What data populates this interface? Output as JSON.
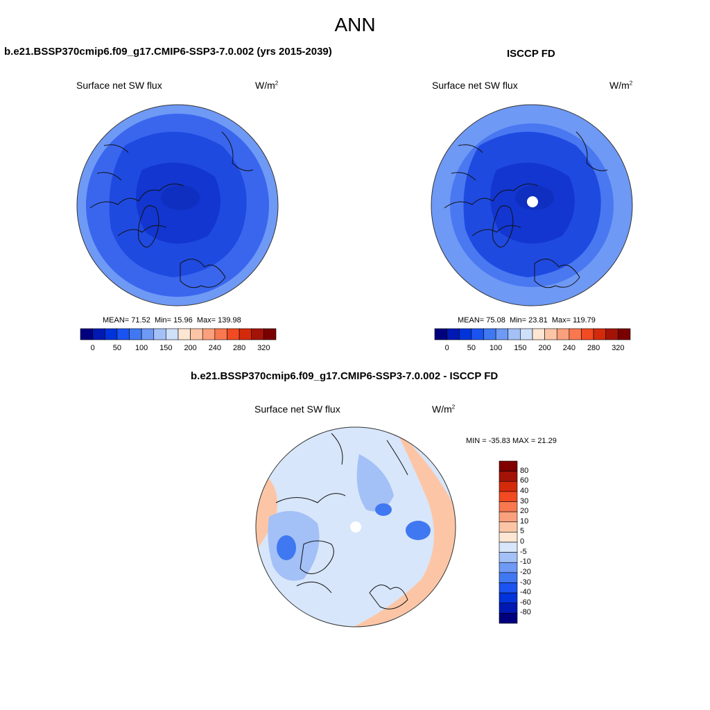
{
  "figure": {
    "title": "ANN"
  },
  "panels": [
    {
      "heading": "b.e21.BSSP370cmip6.f09_g17.CMIP6-SSP3-7.0.002 (yrs 2015-2039)",
      "variable": "Surface net SW flux",
      "units_base": "W/m",
      "units_exp": "2",
      "stats": {
        "mean_label": "MEAN=",
        "mean": "71.52",
        "min_label": "Min=",
        "min": "15.96",
        "max_label": "Max=",
        "max": "139.98"
      }
    },
    {
      "heading": "ISCCP FD",
      "variable": "Surface net SW flux",
      "units_base": "W/m",
      "units_exp": "2",
      "stats": {
        "mean_label": "MEAN=",
        "mean": "75.08",
        "min_label": "Min=",
        "min": "23.81",
        "max_label": "Max=",
        "max": "119.79"
      }
    },
    {
      "heading": "b.e21.BSSP370cmip6.f09_g17.CMIP6-SSP3-7.0.002 - ISCCP FD",
      "variable": "Surface net SW flux",
      "units_base": "W/m",
      "units_exp": "2",
      "stats": {
        "text": "MIN = -35.83 MAX =  21.29"
      }
    }
  ],
  "colorbar_abs": {
    "orientation": "horizontal",
    "ticks": [
      "0",
      "50",
      "100",
      "150",
      "200",
      "240",
      "280",
      "320"
    ],
    "colors": [
      "#00007f",
      "#0019b3",
      "#0033d9",
      "#1a53f0",
      "#4078f2",
      "#6e99f5",
      "#a3c0f7",
      "#cfe0fa",
      "#fde6d3",
      "#fcc6a6",
      "#fba07c",
      "#f97850",
      "#f24a22",
      "#d42a0c",
      "#a31307",
      "#7a0000"
    ]
  },
  "colorbar_diff": {
    "orientation": "vertical",
    "labels": [
      "80",
      "60",
      "40",
      "30",
      "20",
      "10",
      "5",
      "0",
      "-5",
      "-10",
      "-20",
      "-30",
      "-40",
      "-60",
      "-80"
    ],
    "colors": [
      "#800000",
      "#a31307",
      "#d42a0c",
      "#f24a22",
      "#f97850",
      "#fba07c",
      "#fcc6a6",
      "#fde6d3",
      "#d7e6fa",
      "#a3c0f7",
      "#6e99f5",
      "#4078f2",
      "#1a53f0",
      "#0033d9",
      "#0019b3",
      "#00007f"
    ]
  },
  "colors": {
    "ocean_model": "#3a66ee",
    "ocean_obs": "#4a78f1",
    "outer_ring": "#6e99f5",
    "inner_dark": "#1f4ae0",
    "core_dark": "#1236cf",
    "diff_base": "#d7e6fa",
    "diff_warm": "#fcc6a6",
    "diff_cool": "#a3c0f7",
    "diff_cold": "#4078f2",
    "coastline": "#111111"
  }
}
